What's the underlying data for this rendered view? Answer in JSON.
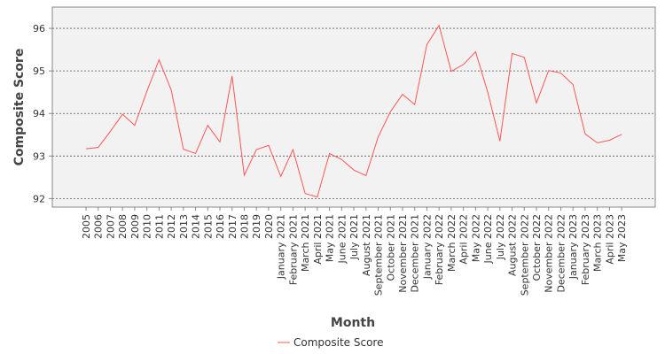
{
  "chart_data": {
    "type": "line",
    "xlabel": "Month",
    "ylabel": "Composite Score",
    "ylim": [
      91.8,
      96.5
    ],
    "yticks": [
      92,
      93,
      94,
      95,
      96
    ],
    "grid": true,
    "legend_position": "bottom-center",
    "categories": [
      "2005",
      "2006",
      "2007",
      "2008",
      "2009",
      "2010",
      "2011",
      "2012",
      "2013",
      "2014",
      "2015",
      "2016",
      "2017",
      "2018",
      "2019",
      "2020",
      "January 2021",
      "February 2021",
      "March 2021",
      "April 2021",
      "May 2021",
      "June 2021",
      "July 2021",
      "August 2021",
      "September 2021",
      "October 2021",
      "November 2021",
      "December 2021",
      "January 2022",
      "February 2022",
      "March 2022",
      "April 2022",
      "May 2022",
      "June 2022",
      "July 2022",
      "August 2022",
      "September 2022",
      "October 2022",
      "November 2022",
      "December 2022",
      "January 2023",
      "February 2023",
      "March 2023",
      "April 2023",
      "May 2023"
    ],
    "series": [
      {
        "name": "Composite Score",
        "color": "#ff5555",
        "values": [
          93.17,
          93.2,
          93.58,
          93.98,
          93.72,
          94.52,
          95.26,
          94.55,
          93.16,
          93.06,
          93.72,
          93.33,
          94.88,
          92.55,
          93.15,
          93.25,
          92.52,
          93.15,
          92.12,
          92.04,
          93.06,
          92.92,
          92.67,
          92.54,
          93.45,
          94.04,
          94.45,
          94.21,
          95.62,
          96.07,
          94.99,
          95.15,
          95.45,
          94.5,
          93.35,
          95.41,
          95.32,
          94.25,
          95.01,
          94.95,
          94.68,
          93.52,
          93.31,
          93.37,
          93.51
        ]
      }
    ]
  }
}
